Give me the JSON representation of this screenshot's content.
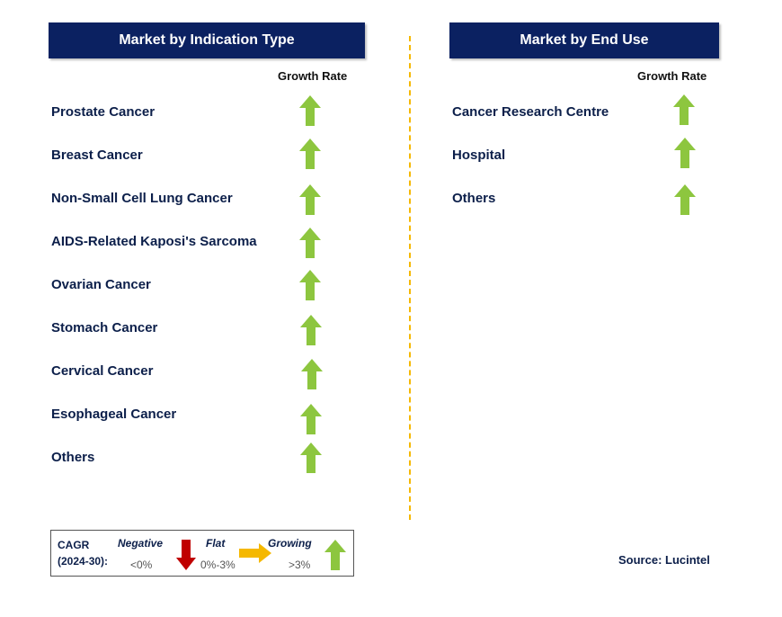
{
  "left_panel": {
    "title": "Market by Indication Type",
    "growth_header": "Growth Rate",
    "items": [
      {
        "label": "Prostate Cancer",
        "trend": "growing"
      },
      {
        "label": "Breast Cancer",
        "trend": "growing"
      },
      {
        "label": "Non-Small Cell Lung Cancer",
        "trend": "growing"
      },
      {
        "label": "AIDS-Related Kaposi's Sarcoma",
        "trend": "growing"
      },
      {
        "label": "Ovarian Cancer",
        "trend": "growing"
      },
      {
        "label": "Stomach Cancer",
        "trend": "growing"
      },
      {
        "label": "Cervical Cancer",
        "trend": "growing"
      },
      {
        "label": "Esophageal Cancer",
        "trend": "growing"
      },
      {
        "label": "Others",
        "trend": "growing"
      }
    ]
  },
  "right_panel": {
    "title": "Market by End Use",
    "growth_header": "Growth Rate",
    "items": [
      {
        "label": "Cancer Research Centre",
        "trend": "growing"
      },
      {
        "label": "Hospital",
        "trend": "growing"
      },
      {
        "label": "Others",
        "trend": "growing"
      }
    ]
  },
  "legend": {
    "cagr_label": "CAGR",
    "period_label": "(2024-30):",
    "negative_label": "Negative",
    "negative_range": "<0%",
    "flat_label": "Flat",
    "flat_range": "0%-3%",
    "growing_label": "Growing",
    "growing_range": ">3%"
  },
  "source": "Source: Lucintel",
  "colors": {
    "header_bg": "#0b2161",
    "growing_arrow": "#8dc63f",
    "negative_arrow": "#c00000",
    "flat_arrow": "#f5b800",
    "divider": "#f5b800",
    "text": "#0c1f4a"
  },
  "icons": {
    "growing": "up-arrow-icon",
    "negative": "down-arrow-icon",
    "flat": "right-arrow-icon"
  }
}
